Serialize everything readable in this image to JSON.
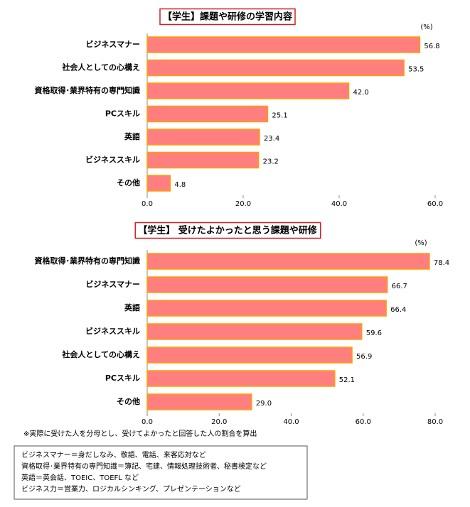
{
  "chart_data": [
    {
      "type": "bar",
      "orientation": "horizontal",
      "title": "【学生】課題や研修の学習内容",
      "unit_label": "(%)",
      "categories": [
        "ビジネスマナー",
        "社会人としての心構え",
        "資格取得･業界特有の専門知識",
        "PCスキル",
        "英語",
        "ビジネススキル",
        "その他"
      ],
      "values": [
        56.8,
        53.5,
        42.0,
        25.1,
        23.4,
        23.2,
        4.8
      ],
      "value_labels": [
        "56.8",
        "53.5",
        "42.0",
        "25.1",
        "23.4",
        "23.2",
        "4.8"
      ],
      "color": "#ff7f7f",
      "edge_color": "#ffa000",
      "xlim": [
        0,
        60
      ],
      "xticks": [
        {
          "value": 0,
          "label": "0.0"
        },
        {
          "value": 20,
          "label": "20.0"
        },
        {
          "value": 40,
          "label": "40.0"
        },
        {
          "value": 60,
          "label": "60.0"
        }
      ],
      "grid": false
    },
    {
      "type": "bar",
      "orientation": "horizontal",
      "title": "【学生】 受けたよかったと思う課題や研修",
      "unit_label": "(%)",
      "categories": [
        "資格取得･業界特有の専門知識",
        "ビジネスマナー",
        "英語",
        "ビジネススキル",
        "社会人としての心構え",
        "PCスキル",
        "その他"
      ],
      "values": [
        78.4,
        66.7,
        66.4,
        59.6,
        56.9,
        52.1,
        29.0
      ],
      "value_labels": [
        "78.4",
        "66.7",
        "66.4",
        "59.6",
        "56.9",
        "52.1",
        "29.0"
      ],
      "color": "#ff7f7f",
      "edge_color": "#ffa000",
      "xlim": [
        0,
        80
      ],
      "xticks": [
        {
          "value": 0,
          "label": "0.0"
        },
        {
          "value": 20,
          "label": "20.0"
        },
        {
          "value": 40,
          "label": "40.0"
        },
        {
          "value": 60,
          "label": "60.0"
        },
        {
          "value": 80,
          "label": "80.0"
        }
      ],
      "grid": false,
      "footnote": "※実際に受けた人を分母とし、受けてよかったと回答した人の割合を算出"
    }
  ],
  "notes": {
    "lines": [
      "ビジネスマナー＝身だしなみ、敬語、電話、来客応対など",
      "資格取得･業界特有の専門知識＝簿記、宅建、情報処理技術者、秘書検定など",
      "英語＝英会話、TOEIC、TOEFL など",
      "ビジネス力＝営業力、ロジカルシンキング、プレゼンテーションなど"
    ]
  }
}
